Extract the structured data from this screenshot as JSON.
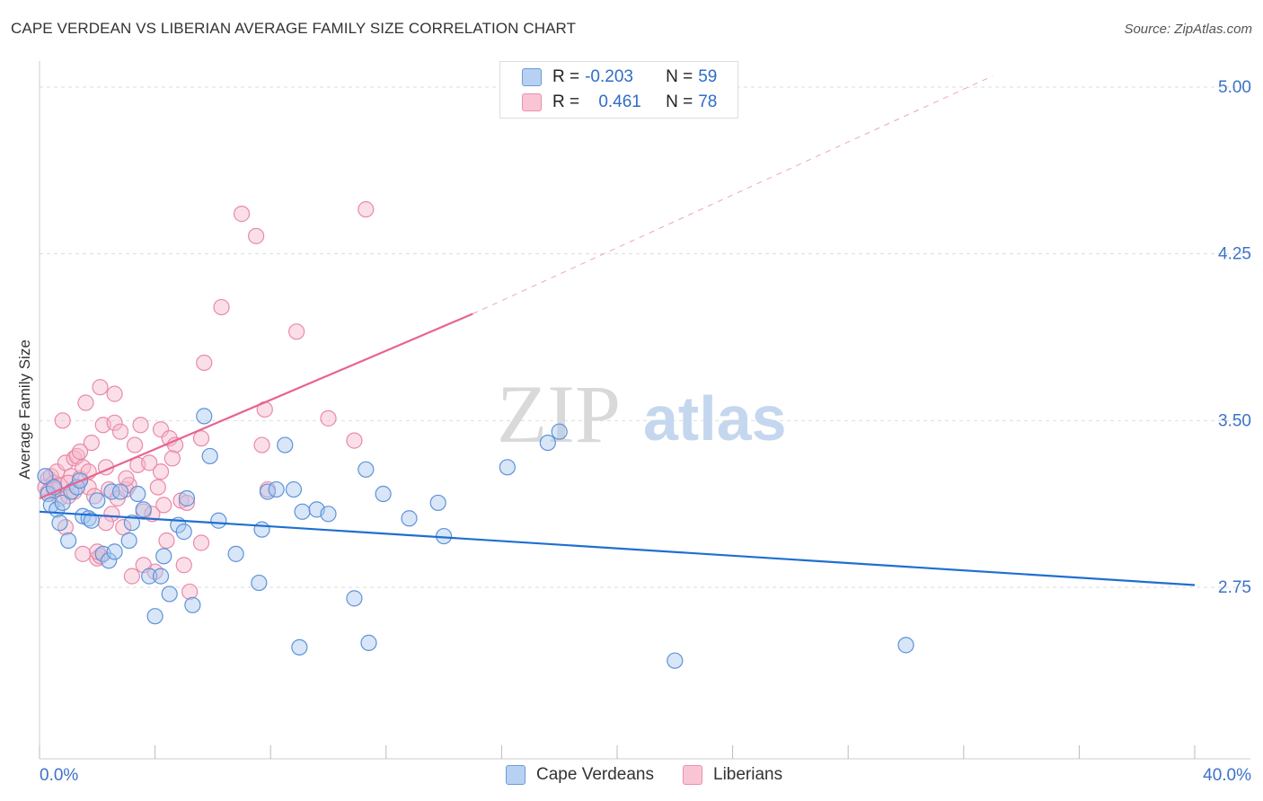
{
  "title": "CAPE VERDEAN VS LIBERIAN AVERAGE FAMILY SIZE CORRELATION CHART",
  "source": "Source: ZipAtlas.com",
  "watermark": {
    "zip": "ZIP",
    "atlas": "atlas"
  },
  "legend": {
    "rows": [
      {
        "r_label": "R = ",
        "r_value": "-0.203",
        "n_label": "N = ",
        "n_value": "59"
      },
      {
        "r_label": "R = ",
        "r_value": "0.461",
        "n_label": "N = ",
        "n_value": "78"
      }
    ]
  },
  "bottom_legend": {
    "cape": "Cape Verdeans",
    "liberians": "Liberians"
  },
  "colors": {
    "blue_fill": "#a9c8f0",
    "blue_stroke": "#5d93d8",
    "blue_line": "#1f6fd1",
    "pink_fill": "#f7b8cb",
    "pink_stroke": "#e98aa8",
    "pink_line": "#e8648f",
    "grid": "#dddddd",
    "axis_label": "#3d72c6"
  },
  "chart_data": {
    "type": "scatter",
    "title": "CAPE VERDEAN VS LIBERIAN AVERAGE FAMILY SIZE CORRELATION CHART",
    "xlabel": "",
    "ylabel": "Average Family Size",
    "xlim": [
      0,
      40
    ],
    "ylim": [
      2.0,
      5.1
    ],
    "x_tick_labels": [
      "0.0%",
      "40.0%"
    ],
    "y_ticks": [
      2.75,
      3.5,
      4.25,
      5.0
    ],
    "y_tick_labels": [
      "2.75",
      "3.50",
      "4.25",
      "5.00"
    ],
    "series": [
      {
        "name": "Cape Verdeans",
        "R": -0.203,
        "N": 59,
        "trend": {
          "x0": 0,
          "y0": 3.09,
          "x1": 40,
          "y1": 2.76
        },
        "points": [
          [
            0.2,
            3.25
          ],
          [
            0.3,
            3.17
          ],
          [
            0.4,
            3.12
          ],
          [
            0.5,
            3.2
          ],
          [
            0.6,
            3.1
          ],
          [
            0.7,
            3.04
          ],
          [
            0.8,
            3.13
          ],
          [
            1.0,
            2.96
          ],
          [
            1.1,
            3.18
          ],
          [
            1.3,
            3.2
          ],
          [
            1.4,
            3.23
          ],
          [
            1.5,
            3.07
          ],
          [
            1.7,
            3.06
          ],
          [
            1.8,
            3.05
          ],
          [
            2.0,
            3.14
          ],
          [
            2.2,
            2.9
          ],
          [
            2.4,
            2.87
          ],
          [
            2.5,
            3.18
          ],
          [
            2.6,
            2.91
          ],
          [
            2.8,
            3.18
          ],
          [
            3.1,
            2.96
          ],
          [
            3.2,
            3.04
          ],
          [
            3.4,
            3.17
          ],
          [
            3.6,
            3.1
          ],
          [
            3.8,
            2.8
          ],
          [
            4.0,
            2.62
          ],
          [
            4.2,
            2.8
          ],
          [
            4.3,
            2.89
          ],
          [
            4.5,
            2.72
          ],
          [
            4.8,
            3.03
          ],
          [
            5.0,
            3.0
          ],
          [
            5.1,
            3.15
          ],
          [
            5.3,
            2.67
          ],
          [
            5.7,
            3.52
          ],
          [
            5.9,
            3.34
          ],
          [
            6.2,
            3.05
          ],
          [
            6.8,
            2.9
          ],
          [
            7.6,
            2.77
          ],
          [
            7.7,
            3.01
          ],
          [
            7.9,
            3.18
          ],
          [
            8.2,
            3.19
          ],
          [
            8.5,
            3.39
          ],
          [
            8.8,
            3.19
          ],
          [
            9.0,
            2.48
          ],
          [
            9.1,
            3.09
          ],
          [
            9.6,
            3.1
          ],
          [
            10.0,
            3.08
          ],
          [
            10.9,
            2.7
          ],
          [
            11.3,
            3.28
          ],
          [
            11.4,
            2.5
          ],
          [
            11.9,
            3.17
          ],
          [
            12.8,
            3.06
          ],
          [
            13.8,
            3.13
          ],
          [
            14.0,
            2.98
          ],
          [
            16.2,
            3.29
          ],
          [
            17.6,
            3.4
          ],
          [
            18.0,
            3.45
          ],
          [
            22.0,
            2.42
          ],
          [
            30.0,
            2.49
          ]
        ]
      },
      {
        "name": "Liberians",
        "R": 0.461,
        "N": 78,
        "trend": {
          "x0": 0,
          "y0": 3.15,
          "x1": 15,
          "y1": 3.98,
          "dash_x1": 33,
          "dash_y1": 5.05
        },
        "points": [
          [
            0.2,
            3.2
          ],
          [
            0.3,
            3.24
          ],
          [
            0.3,
            3.18
          ],
          [
            0.4,
            3.25
          ],
          [
            0.5,
            3.22
          ],
          [
            0.6,
            3.27
          ],
          [
            0.7,
            3.15
          ],
          [
            0.7,
            3.21
          ],
          [
            0.8,
            3.5
          ],
          [
            0.9,
            3.31
          ],
          [
            1.0,
            3.16
          ],
          [
            1.1,
            3.25
          ],
          [
            1.2,
            3.33
          ],
          [
            1.3,
            3.34
          ],
          [
            1.4,
            3.24
          ],
          [
            1.5,
            3.29
          ],
          [
            1.5,
            2.9
          ],
          [
            1.6,
            3.58
          ],
          [
            1.7,
            3.2
          ],
          [
            1.8,
            3.4
          ],
          [
            1.9,
            3.16
          ],
          [
            2.0,
            2.88
          ],
          [
            2.1,
            2.89
          ],
          [
            2.1,
            3.65
          ],
          [
            2.2,
            3.48
          ],
          [
            2.3,
            3.29
          ],
          [
            2.4,
            3.19
          ],
          [
            2.5,
            3.08
          ],
          [
            2.6,
            3.49
          ],
          [
            2.6,
            3.62
          ],
          [
            2.7,
            3.15
          ],
          [
            2.9,
            3.02
          ],
          [
            3.0,
            3.19
          ],
          [
            3.1,
            3.21
          ],
          [
            3.2,
            2.8
          ],
          [
            3.3,
            3.39
          ],
          [
            3.4,
            3.3
          ],
          [
            3.5,
            3.48
          ],
          [
            3.6,
            3.09
          ],
          [
            3.8,
            3.31
          ],
          [
            3.9,
            3.08
          ],
          [
            4.0,
            2.82
          ],
          [
            4.1,
            3.2
          ],
          [
            4.2,
            3.46
          ],
          [
            4.3,
            3.12
          ],
          [
            4.4,
            2.96
          ],
          [
            4.5,
            3.42
          ],
          [
            4.7,
            3.39
          ],
          [
            4.9,
            3.14
          ],
          [
            5.1,
            3.13
          ],
          [
            5.2,
            2.73
          ],
          [
            5.6,
            2.95
          ],
          [
            5.6,
            3.42
          ],
          [
            5.7,
            3.76
          ],
          [
            6.3,
            4.01
          ],
          [
            7.0,
            4.43
          ],
          [
            7.5,
            4.33
          ],
          [
            7.7,
            3.39
          ],
          [
            7.8,
            3.55
          ],
          [
            7.9,
            3.19
          ],
          [
            8.9,
            3.9
          ],
          [
            10.0,
            3.51
          ],
          [
            10.9,
            3.41
          ],
          [
            11.3,
            4.45
          ],
          [
            0.5,
            3.19
          ],
          [
            1.0,
            3.22
          ],
          [
            1.2,
            3.18
          ],
          [
            1.7,
            3.27
          ],
          [
            2.3,
            3.04
          ],
          [
            2.8,
            3.45
          ],
          [
            3.6,
            2.85
          ],
          [
            4.2,
            3.27
          ],
          [
            0.9,
            3.02
          ],
          [
            1.4,
            3.36
          ],
          [
            2.0,
            2.91
          ],
          [
            3.0,
            3.24
          ],
          [
            4.6,
            3.33
          ],
          [
            5.0,
            2.85
          ]
        ]
      }
    ]
  }
}
